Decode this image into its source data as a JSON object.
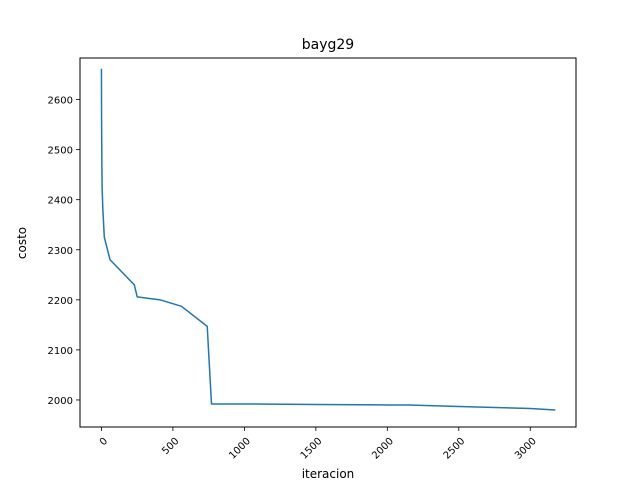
{
  "chart_data": {
    "type": "line",
    "title": "bayg29",
    "xlabel": "iteracion",
    "ylabel": "costo",
    "xlim": [
      -150,
      3320
    ],
    "ylim": [
      1946,
      2683
    ],
    "x_ticks": [
      0,
      500,
      1000,
      1500,
      2000,
      2500,
      3000
    ],
    "x_tick_labels": [
      "0",
      "500",
      "1000",
      "1500",
      "2000",
      "2500",
      "3000"
    ],
    "y_ticks": [
      2000,
      2100,
      2200,
      2300,
      2400,
      2500,
      2600
    ],
    "y_tick_labels": [
      "2000",
      "2100",
      "2200",
      "2300",
      "2400",
      "2500",
      "2600"
    ],
    "grid": false,
    "series": [
      {
        "color": "#1f77b4",
        "x": [
          0,
          1,
          3,
          5,
          10,
          20,
          60,
          230,
          250,
          410,
          560,
          740,
          770,
          1000,
          1500,
          2000,
          2150,
          2500,
          3000,
          3170
        ],
        "y": [
          2660,
          2560,
          2470,
          2420,
          2380,
          2325,
          2280,
          2230,
          2206,
          2200,
          2187,
          2147,
          1992,
          1992,
          1991,
          1990,
          1990,
          1987,
          1983,
          1980
        ]
      }
    ]
  }
}
